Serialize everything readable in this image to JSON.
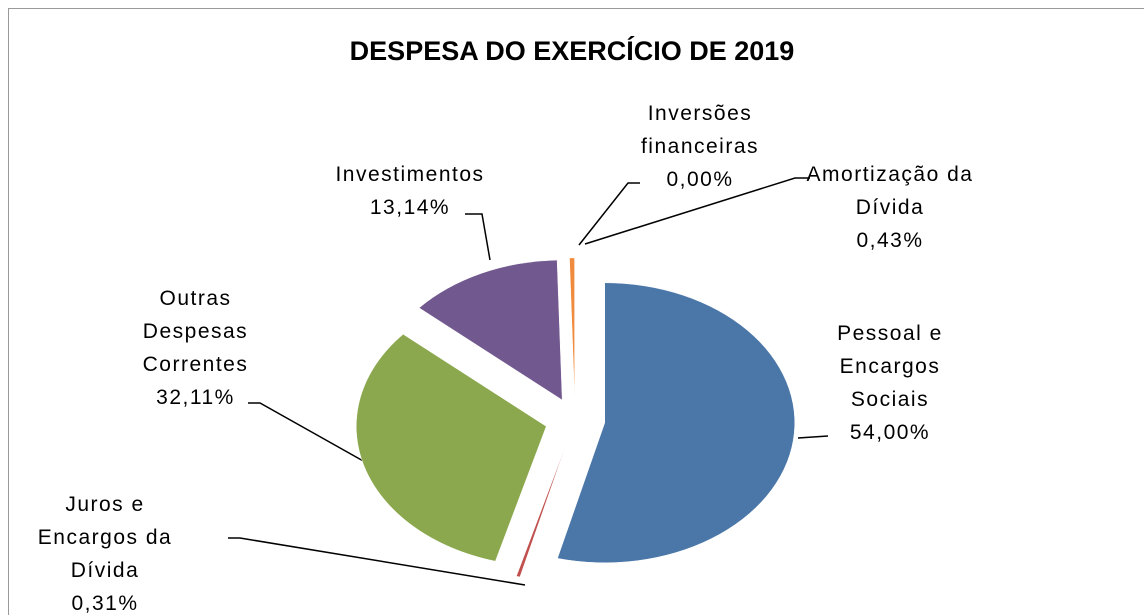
{
  "chart_data": {
    "type": "pie",
    "title": "DESPESA DO EXERCÍCIO DE 2019",
    "categories": [
      "Pessoal e Encargos Sociais",
      "Juros e Encargos da Dívida",
      "Outras Despesas Correntes",
      "Investimentos",
      "Inversões financeiras",
      "Amortização da Dívida"
    ],
    "values": [
      54.0,
      0.31,
      32.11,
      13.14,
      0.0,
      0.43
    ],
    "value_labels": [
      "54,00%",
      "0,31%",
      "32,11%",
      "13,14%",
      "0,00%",
      "0,43%"
    ],
    "colors": [
      "#4a76a8",
      "#c0504d",
      "#8ba84e",
      "#71588f",
      "#4bacc6",
      "#f08a3c"
    ]
  }
}
